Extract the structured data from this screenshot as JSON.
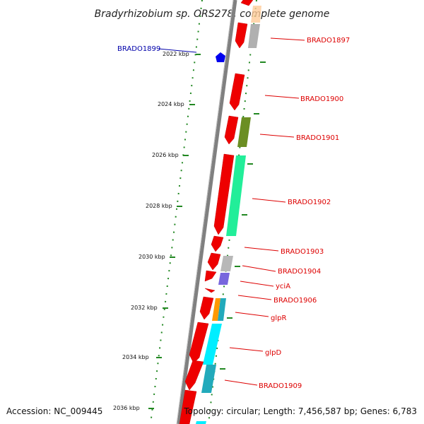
{
  "title": "Bradyrhizobium sp. ORS278, complete genome",
  "footer": {
    "accession": "Accession: NC_009445",
    "topology": "Topology: circular; Length: 7,456,587 bp; Genes: 6,783"
  },
  "ruler": [
    "2022 kbp",
    "2024 kbp",
    "2026 kbp",
    "2028 kbp",
    "2030 kbp",
    "2032 kbp",
    "2034 kbp",
    "2036 kbp"
  ],
  "gene_labels": {
    "BRADO1899": "BRADO1899",
    "BRADO1897": "BRADO1897",
    "BRADO1900": "BRADO1900",
    "BRADO1901": "BRADO1901",
    "BRADO1902": "BRADO1902",
    "BRADO1903": "BRADO1903",
    "BRADO1904": "BRADO1904",
    "yciA": "yciA",
    "BRADO1906": "BRADO1906",
    "glpR": "glpR",
    "glpD": "glpD",
    "BRADO1909": "BRADO1909"
  },
  "colors": {
    "backbone": "#808080",
    "forward_gene": "#ee0000",
    "tick_green": "#228822",
    "label_red": "#dd0000",
    "label_blue": "#0000aa",
    "cog_gray": "#b0b0b0",
    "cog_olive": "#6b8e23",
    "cog_mint": "#22ee99",
    "cog_purple": "#7766dd",
    "cog_orange": "#ff9900",
    "cog_cyan": "#00eeff",
    "cog_teal": "#22aabb",
    "cog_peach": "#ffcc99",
    "reverse_gene_blue": "#0000ee"
  }
}
